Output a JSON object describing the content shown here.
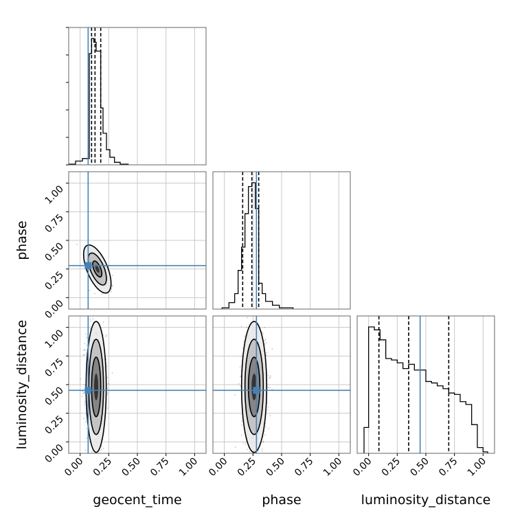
{
  "chart_data": {
    "type": "corner",
    "parameters": [
      "geocent_time",
      "phase",
      "luminosity_distance"
    ],
    "axis_labels": {
      "geocent_time": "geocent_time",
      "phase": "phase",
      "luminosity_distance": "luminosity_distance"
    },
    "range": [
      -0.1,
      1.1
    ],
    "ticks": [
      0.0,
      0.25,
      0.5,
      0.75,
      1.0
    ],
    "tick_labels": [
      "0.00",
      "0.25",
      "0.50",
      "0.75",
      "1.00"
    ],
    "grid": true,
    "truths": {
      "geocent_time": 0.07,
      "phase": 0.28,
      "luminosity_distance": 0.45
    },
    "truth_color": "#4682b4",
    "quantiles": {
      "geocent_time": [
        0.1,
        0.13,
        0.18
      ],
      "phase": [
        0.16,
        0.24,
        0.3
      ],
      "luminosity_distance": [
        0.09,
        0.35,
        0.7
      ]
    },
    "histograms": {
      "geocent_time": {
        "edges": [
          -0.1,
          -0.04,
          0.02,
          0.08,
          0.1,
          0.12,
          0.14,
          0.16,
          0.18,
          0.2,
          0.23,
          0.26,
          0.3,
          0.35,
          0.42
        ],
        "counts": [
          0.5,
          3,
          5,
          88,
          100,
          97,
          90,
          90,
          45,
          25,
          12,
          6,
          2,
          0.5
        ]
      },
      "phase": {
        "edges": [
          -0.02,
          0.04,
          0.09,
          0.12,
          0.15,
          0.18,
          0.21,
          0.24,
          0.27,
          0.3,
          0.33,
          0.36,
          0.42,
          0.48,
          0.6
        ],
        "counts": [
          1,
          5,
          12,
          30,
          48,
          74,
          95,
          98,
          78,
          20,
          12,
          6,
          3,
          1
        ]
      },
      "luminosity_distance": {
        "edges": [
          -0.04,
          0.0,
          0.05,
          0.1,
          0.15,
          0.2,
          0.25,
          0.3,
          0.35,
          0.4,
          0.45,
          0.5,
          0.55,
          0.6,
          0.65,
          0.7,
          0.75,
          0.8,
          0.85,
          0.9,
          0.95,
          1.0,
          1.04
        ],
        "counts": [
          18,
          88,
          86,
          79,
          66,
          65,
          63,
          59,
          62,
          58,
          58,
          50,
          49,
          47,
          45,
          42,
          41,
          36,
          34,
          20,
          4,
          1
        ]
      }
    },
    "pairs": [
      {
        "x": "geocent_time",
        "y": "phase",
        "center": [
          0.15,
          0.25
        ],
        "spread": [
          0.04,
          0.07
        ],
        "correlation": -0.6,
        "contour_scales": [
          1.0,
          2.0,
          3.0
        ]
      },
      {
        "x": "geocent_time",
        "y": "luminosity_distance",
        "center": [
          0.14,
          0.48
        ],
        "spread": [
          0.04,
          0.26
        ],
        "correlation": 0.0,
        "contour_scales": [
          1.0,
          1.6,
          2.2
        ]
      },
      {
        "x": "phase",
        "y": "luminosity_distance",
        "center": [
          0.26,
          0.48
        ],
        "spread": [
          0.05,
          0.26
        ],
        "correlation": 0.0,
        "contour_scales": [
          1.0,
          1.6,
          2.2
        ]
      }
    ]
  }
}
